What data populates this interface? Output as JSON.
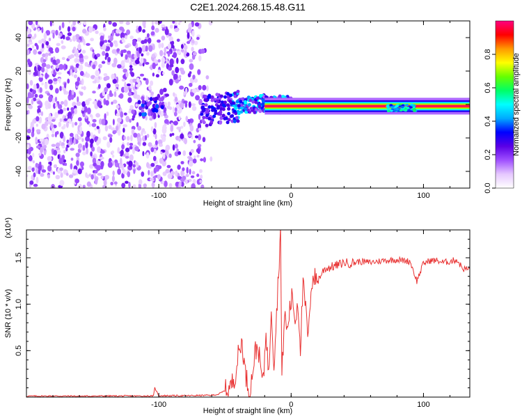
{
  "title": "C2E1.2024.268.15.48.G11",
  "chart_data": [
    {
      "type": "heatmap",
      "xlabel": "Height of straight line (km)",
      "ylabel": "Frequency (Hz)",
      "xlim": [
        -200,
        135
      ],
      "ylim": [
        -50,
        50
      ],
      "x_ticks": [
        -100,
        0,
        100
      ],
      "y_ticks": [
        -40,
        -20,
        0,
        20,
        40
      ],
      "colorbar": {
        "label": "Normalized spectral amplitude",
        "range": [
          0,
          1
        ],
        "ticks": [
          0.0,
          0.2,
          0.4,
          0.6,
          0.8
        ],
        "colors": [
          "#ffffff",
          "#e6c8ff",
          "#a050ff",
          "#5a00e6",
          "#0000ff",
          "#00aaff",
          "#00ffff",
          "#00ff66",
          "#66ff00",
          "#ffff00",
          "#ff9900",
          "#ff0000",
          "#ff0080"
        ]
      }
    },
    {
      "type": "line",
      "xlabel": "Height of straight line (km)",
      "ylabel": "SNR (10 * v/v)",
      "scale_label": "(x10⁴)",
      "xlim": [
        -200,
        135
      ],
      "ylim": [
        0,
        1.8
      ],
      "x_ticks": [
        -100,
        0,
        100
      ],
      "y_ticks": [
        0.5,
        1.0,
        1.5
      ],
      "color": "#e83030",
      "series": [
        {
          "x": [
            -200,
            -180,
            -160,
            -140,
            -120,
            -104,
            -103,
            -100,
            -80,
            -60,
            -55,
            -50,
            -46,
            -42,
            -40,
            -37,
            -35,
            -33,
            -31,
            -29,
            -27,
            -25,
            -23,
            -21,
            -19,
            -17,
            -15,
            -13,
            -11,
            -9,
            -8,
            -7,
            -5,
            -3,
            -1,
            1,
            3,
            5,
            7,
            9,
            11,
            13,
            15,
            17,
            20,
            25,
            30,
            35,
            40,
            45,
            50,
            60,
            70,
            80,
            90,
            95,
            100,
            105,
            110,
            115,
            120,
            125,
            130,
            135
          ],
          "y": [
            0.01,
            0.012,
            0.01,
            0.012,
            0.012,
            0.012,
            0.1,
            0.015,
            0.015,
            0.02,
            0.03,
            0.07,
            0.1,
            0.25,
            0.45,
            0.6,
            0.3,
            0.15,
            0.05,
            0.3,
            0.5,
            0.55,
            0.3,
            0.15,
            0.75,
            0.2,
            1.0,
            0.35,
            0.9,
            1.5,
            1.8,
            0.2,
            0.9,
            0.7,
            0.95,
            1.1,
            0.8,
            1.05,
            0.55,
            1.2,
            0.95,
            0.6,
            1.2,
            1.3,
            1.25,
            1.38,
            1.4,
            1.42,
            1.45,
            1.44,
            1.46,
            1.45,
            1.47,
            1.48,
            1.46,
            1.25,
            1.44,
            1.47,
            1.47,
            1.45,
            1.46,
            1.48,
            1.38,
            1.38
          ]
        }
      ]
    }
  ]
}
